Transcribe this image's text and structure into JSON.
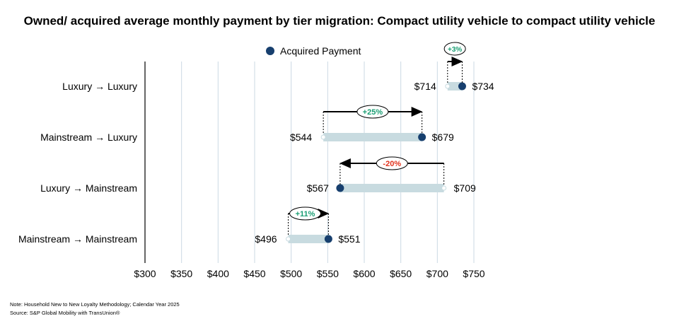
{
  "chart_data": {
    "type": "dumbbell",
    "title": "Owned/ acquired average monthly payment by tier migration: Compact utility vehicle to compact utility vehicle",
    "legend": {
      "label": "Acquired Payment",
      "placement": "top-center"
    },
    "xlim": [
      300,
      750
    ],
    "x_ticks": [
      300,
      350,
      400,
      450,
      500,
      550,
      600,
      650,
      700,
      750
    ],
    "x_tick_labels": [
      "$300",
      "$350",
      "$400",
      "$450",
      "$500",
      "$550",
      "$600",
      "$650",
      "$700",
      "$750"
    ],
    "grid": true,
    "rows": [
      {
        "category": "Luxury → Luxury",
        "owned": 714,
        "acquired": 734,
        "owned_label": "$714",
        "acquired_label": "$734",
        "change": "+3%",
        "change_color": "#1a9e73"
      },
      {
        "category": "Mainstream → Luxury",
        "owned": 544,
        "acquired": 679,
        "owned_label": "$544",
        "acquired_label": "$679",
        "change": "+25%",
        "change_color": "#1a9e73"
      },
      {
        "category": "Luxury → Mainstream",
        "owned": 709,
        "acquired": 567,
        "owned_label": "$709",
        "acquired_label": "$567",
        "change": "-20%",
        "change_color": "#e2321c"
      },
      {
        "category": "Mainstream → Mainstream",
        "owned": 496,
        "acquired": 551,
        "owned_label": "$496",
        "acquired_label": "$551",
        "change": "+11%",
        "change_color": "#1a9e73"
      }
    ]
  },
  "colors": {
    "dot": "#173f6e",
    "bar": "#c8dbe0",
    "grid": "#cbd9e3"
  },
  "notes": {
    "note": "Note: Household New to New Loyalty Methodology; Calendar Year 2025",
    "source": "Source: S&P Global Mobility with TransUnion®"
  }
}
